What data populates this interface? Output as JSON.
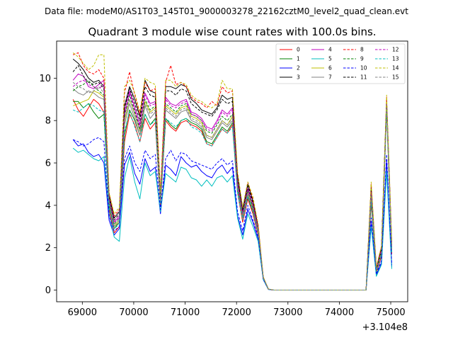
{
  "figure": {
    "suptitle": "Data file: modeM0/AS1T03_145T01_9000003278_22162cztM0_level2_quad_clean.evt",
    "title": "Quadrant 3 module wise count rates with 100.0s bins.",
    "offset_label": "+3.104e8"
  },
  "chart_data": {
    "type": "line",
    "title": "Quadrant 3 module wise count rates with 100.0s bins.",
    "xlabel": "",
    "ylabel": "",
    "x_offset": 310400000,
    "xlim": [
      68500,
      75330
    ],
    "ylim": [
      -0.55,
      11.75
    ],
    "xticks": [
      69000,
      70000,
      71000,
      72000,
      73000,
      74000,
      75000
    ],
    "xtick_labels": [
      "69000",
      "70000",
      "71000",
      "72000",
      "73000",
      "74000",
      "75000"
    ],
    "yticks": [
      0,
      2,
      4,
      6,
      8,
      10
    ],
    "ytick_labels": [
      "0",
      "2",
      "4",
      "6",
      "8",
      "10"
    ],
    "grid": false,
    "legend_position": "top-right",
    "x": [
      68820,
      68920,
      69020,
      69120,
      69220,
      69320,
      69420,
      69520,
      69620,
      69720,
      69820,
      69920,
      70020,
      70120,
      70220,
      70320,
      70420,
      70520,
      70620,
      70720,
      70820,
      70920,
      71020,
      71120,
      71220,
      71320,
      71420,
      71520,
      71620,
      71720,
      71820,
      71920,
      72020,
      72120,
      72220,
      72320,
      72420,
      72520,
      72620,
      72720,
      72820,
      72920,
      73020,
      73120,
      73220,
      73320,
      73420,
      73520,
      73620,
      73720,
      73820,
      73920,
      74020,
      74120,
      74220,
      74320,
      74420,
      74520,
      74620,
      74720,
      74820,
      74920,
      75020
    ],
    "series": [
      {
        "name": "0",
        "color": "#ff0000",
        "dash": false,
        "values": [
          9.0,
          8.5,
          8.2,
          8.6,
          9.0,
          8.8,
          8.4,
          3.8,
          2.7,
          3.0,
          7.0,
          8.3,
          7.8,
          7.0,
          8.1,
          7.6,
          7.9,
          4.0,
          8.0,
          7.7,
          7.5,
          7.9,
          8.0,
          7.8,
          7.7,
          7.5,
          6.9,
          6.8,
          7.2,
          7.6,
          7.4,
          7.8,
          4.6,
          3.2,
          4.3,
          3.6,
          2.6,
          0.55,
          0.04,
          0,
          0,
          0,
          0,
          0,
          0,
          0,
          0,
          0,
          0,
          0,
          0,
          0,
          0,
          0,
          0,
          0,
          0,
          0,
          4.1,
          0.8,
          1.6,
          8.5,
          1.7
        ]
      },
      {
        "name": "1",
        "color": "#008000",
        "dash": false,
        "values": [
          8.9,
          8.9,
          8.6,
          8.8,
          8.4,
          8.1,
          8.3,
          4.0,
          2.9,
          3.2,
          7.3,
          8.5,
          8.0,
          7.3,
          8.3,
          7.8,
          8.1,
          4.2,
          8.1,
          7.8,
          7.6,
          8.0,
          8.1,
          7.9,
          7.8,
          7.6,
          7.0,
          6.9,
          7.3,
          7.7,
          7.5,
          7.9,
          4.7,
          3.4,
          4.4,
          3.7,
          2.7,
          0.58,
          0.04,
          0,
          0,
          0,
          0,
          0,
          0,
          0,
          0,
          0,
          0,
          0,
          0,
          0,
          0,
          0,
          0,
          0,
          0,
          0,
          4.2,
          0.85,
          1.7,
          8.6,
          1.8
        ]
      },
      {
        "name": "2",
        "color": "#0000ff",
        "dash": false,
        "values": [
          7.1,
          6.8,
          6.9,
          6.5,
          6.3,
          6.4,
          6.0,
          3.3,
          2.6,
          2.9,
          5.9,
          6.5,
          5.5,
          5.0,
          6.2,
          5.6,
          5.8,
          3.6,
          5.9,
          5.7,
          5.4,
          6.3,
          6.0,
          5.8,
          5.9,
          5.6,
          5.4,
          5.3,
          5.7,
          5.9,
          5.5,
          5.8,
          3.5,
          2.6,
          3.8,
          3.2,
          2.4,
          0.5,
          0.03,
          0,
          0,
          0,
          0,
          0,
          0,
          0,
          0,
          0,
          0,
          0,
          0,
          0,
          0,
          0,
          0,
          0,
          0,
          0,
          3.2,
          0.7,
          1.3,
          6.1,
          1.1
        ]
      },
      {
        "name": "3",
        "color": "#000000",
        "dash": false,
        "values": [
          10.9,
          10.7,
          10.4,
          10.0,
          9.8,
          9.9,
          9.6,
          4.5,
          3.4,
          3.7,
          8.7,
          9.6,
          9.0,
          8.2,
          9.9,
          9.4,
          9.3,
          4.5,
          9.6,
          9.6,
          9.5,
          9.7,
          9.6,
          9.0,
          8.8,
          8.5,
          8.4,
          8.3,
          8.6,
          9.2,
          9.0,
          9.1,
          5.4,
          3.8,
          5.0,
          4.2,
          3.0,
          0.6,
          0.04,
          0,
          0,
          0,
          0,
          0,
          0,
          0,
          0,
          0,
          0,
          0,
          0,
          0,
          0,
          0,
          0,
          0,
          0,
          0,
          4.9,
          1.0,
          2.0,
          9.0,
          2.1
        ]
      },
      {
        "name": "4",
        "color": "#bf00bf",
        "dash": false,
        "values": [
          9.9,
          10.2,
          10.1,
          9.6,
          9.5,
          9.7,
          9.9,
          4.3,
          3.2,
          3.5,
          8.4,
          9.4,
          8.6,
          7.8,
          9.3,
          8.8,
          8.9,
          4.4,
          9.1,
          8.8,
          8.7,
          8.9,
          9.0,
          8.4,
          8.3,
          8.1,
          7.7,
          7.6,
          8.0,
          8.5,
          8.3,
          8.6,
          5.1,
          3.6,
          4.8,
          4.0,
          2.9,
          0.6,
          0.04,
          0,
          0,
          0,
          0,
          0,
          0,
          0,
          0,
          0,
          0,
          0,
          0,
          0,
          0,
          0,
          0,
          0,
          0,
          0,
          4.7,
          0.95,
          1.9,
          8.9,
          2.0
        ]
      },
      {
        "name": "5",
        "color": "#00bfbf",
        "dash": false,
        "values": [
          6.7,
          6.5,
          6.6,
          6.4,
          6.2,
          6.1,
          6.3,
          3.6,
          2.5,
          2.3,
          5.3,
          6.3,
          5.1,
          4.3,
          6.0,
          5.4,
          5.6,
          3.7,
          5.5,
          5.3,
          5.1,
          5.8,
          5.7,
          5.3,
          5.2,
          4.9,
          5.2,
          4.9,
          5.3,
          5.4,
          5.1,
          5.4,
          3.4,
          2.4,
          3.6,
          3.0,
          2.3,
          0.5,
          0.03,
          0,
          0,
          0,
          0,
          0,
          0,
          0,
          0,
          0,
          0,
          0,
          0,
          0,
          0,
          0,
          0,
          0,
          0,
          0,
          3.0,
          0.65,
          1.2,
          5.6,
          1.0
        ]
      },
      {
        "name": "6",
        "color": "#bfbf00",
        "dash": false,
        "values": [
          8.7,
          8.8,
          8.9,
          9.0,
          9.4,
          9.3,
          9.1,
          4.2,
          3.0,
          3.3,
          8.0,
          9.0,
          8.3,
          7.5,
          8.9,
          8.4,
          8.6,
          4.3,
          8.7,
          8.5,
          8.3,
          8.6,
          8.7,
          8.2,
          8.1,
          7.9,
          7.3,
          7.2,
          7.6,
          8.0,
          7.8,
          8.2,
          4.9,
          3.5,
          4.6,
          3.9,
          2.8,
          0.58,
          0.04,
          0,
          0,
          0,
          0,
          0,
          0,
          0,
          0,
          0,
          0,
          0,
          0,
          0,
          0,
          0,
          0,
          0,
          0,
          0,
          4.5,
          0.9,
          1.8,
          8.8,
          1.9
        ]
      },
      {
        "name": "7",
        "color": "#808080",
        "dash": false,
        "values": [
          9.5,
          9.3,
          9.2,
          9.4,
          9.3,
          9.1,
          9.0,
          4.1,
          3.0,
          3.2,
          7.8,
          8.8,
          8.1,
          7.3,
          8.7,
          8.1,
          8.4,
          4.2,
          8.5,
          8.3,
          8.1,
          8.4,
          8.5,
          8.0,
          7.9,
          7.7,
          7.2,
          7.1,
          7.5,
          7.9,
          7.7,
          8.0,
          4.8,
          3.4,
          4.5,
          3.8,
          2.7,
          0.57,
          0.04,
          0,
          0,
          0,
          0,
          0,
          0,
          0,
          0,
          0,
          0,
          0,
          0,
          0,
          0,
          0,
          0,
          0,
          0,
          0,
          4.4,
          0.88,
          1.75,
          8.7,
          1.85
        ]
      },
      {
        "name": "8",
        "color": "#ff0000",
        "dash": true,
        "values": [
          11.1,
          11.2,
          10.6,
          10.3,
          10.2,
          10.4,
          10.0,
          4.6,
          3.5,
          3.8,
          9.3,
          10.3,
          9.2,
          8.3,
          9.8,
          9.4,
          9.5,
          4.6,
          9.8,
          10.6,
          9.7,
          9.8,
          9.6,
          9.1,
          8.9,
          8.8,
          8.6,
          8.9,
          8.7,
          9.6,
          9.3,
          9.4,
          5.5,
          3.9,
          5.1,
          4.3,
          3.1,
          0.62,
          0.05,
          0,
          0,
          0,
          0,
          0,
          0,
          0,
          0,
          0,
          0,
          0,
          0,
          0,
          0,
          0,
          0,
          0,
          0,
          0,
          5.0,
          1.05,
          2.05,
          9.1,
          2.2
        ]
      },
      {
        "name": "9",
        "color": "#008000",
        "dash": true,
        "values": [
          9.4,
          9.6,
          9.7,
          9.9,
          9.6,
          9.4,
          9.2,
          4.2,
          3.1,
          3.4,
          8.2,
          9.2,
          8.4,
          7.6,
          9.0,
          8.5,
          8.7,
          4.3,
          8.8,
          8.6,
          8.4,
          8.7,
          8.8,
          8.3,
          8.2,
          8.0,
          7.5,
          7.4,
          7.8,
          8.2,
          8.0,
          8.3,
          5.0,
          3.5,
          4.7,
          3.9,
          2.8,
          0.59,
          0.04,
          0,
          0,
          0,
          0,
          0,
          0,
          0,
          0,
          0,
          0,
          0,
          0,
          0,
          0,
          0,
          0,
          0,
          0,
          0,
          4.6,
          0.92,
          1.85,
          8.8,
          1.95
        ]
      },
      {
        "name": "10",
        "color": "#0000ff",
        "dash": true,
        "values": [
          7.1,
          7.0,
          6.8,
          6.9,
          7.1,
          7.2,
          7.0,
          3.5,
          2.8,
          3.0,
          6.2,
          6.8,
          6.0,
          5.6,
          6.6,
          6.2,
          6.4,
          3.8,
          6.2,
          6.6,
          6.1,
          6.5,
          6.4,
          6.1,
          6.0,
          5.9,
          5.8,
          5.7,
          6.0,
          6.2,
          5.9,
          6.1,
          3.7,
          2.8,
          4.0,
          3.3,
          2.5,
          0.52,
          0.03,
          0,
          0,
          0,
          0,
          0,
          0,
          0,
          0,
          0,
          0,
          0,
          0,
          0,
          0,
          0,
          0,
          0,
          0,
          0,
          3.4,
          0.75,
          1.4,
          6.4,
          1.2
        ]
      },
      {
        "name": "11",
        "color": "#000000",
        "dash": true,
        "values": [
          10.3,
          10.6,
          10.1,
          9.8,
          9.7,
          9.8,
          9.5,
          4.4,
          3.3,
          3.6,
          8.6,
          9.5,
          8.8,
          8.0,
          9.6,
          9.2,
          9.1,
          4.4,
          9.4,
          9.4,
          9.2,
          9.5,
          9.4,
          8.8,
          8.6,
          8.4,
          8.3,
          8.2,
          8.5,
          9.0,
          8.8,
          8.9,
          5.3,
          3.7,
          4.9,
          4.1,
          2.9,
          0.6,
          0.04,
          0,
          0,
          0,
          0,
          0,
          0,
          0,
          0,
          0,
          0,
          0,
          0,
          0,
          0,
          0,
          0,
          0,
          0,
          0,
          4.8,
          0.98,
          1.95,
          8.9,
          2.05
        ]
      },
      {
        "name": "12",
        "color": "#bf00bf",
        "dash": true,
        "values": [
          9.6,
          9.8,
          9.9,
          9.7,
          9.6,
          9.5,
          9.7,
          4.3,
          3.2,
          3.4,
          8.3,
          9.3,
          8.5,
          7.7,
          9.2,
          8.7,
          8.8,
          4.4,
          9.0,
          8.7,
          8.6,
          8.8,
          8.9,
          8.3,
          8.2,
          8.0,
          7.6,
          7.5,
          7.9,
          8.4,
          8.2,
          8.5,
          5.0,
          3.6,
          4.7,
          4.0,
          2.9,
          0.6,
          0.04,
          0,
          0,
          0,
          0,
          0,
          0,
          0,
          0,
          0,
          0,
          0,
          0,
          0,
          0,
          0,
          0,
          0,
          0,
          0,
          4.6,
          0.93,
          1.88,
          8.85,
          1.98
        ]
      },
      {
        "name": "13",
        "color": "#00bfbf",
        "dash": true,
        "values": [
          8.5,
          8.4,
          8.6,
          8.8,
          8.7,
          8.5,
          8.4,
          3.9,
          2.9,
          3.1,
          7.5,
          8.4,
          7.7,
          7.0,
          8.3,
          7.8,
          8.0,
          4.1,
          8.1,
          7.9,
          7.7,
          8.0,
          8.1,
          7.7,
          7.6,
          7.4,
          6.9,
          6.8,
          7.2,
          7.6,
          7.4,
          7.7,
          4.6,
          3.3,
          4.4,
          3.7,
          2.7,
          0.56,
          0.04,
          0,
          0,
          0,
          0,
          0,
          0,
          0,
          0,
          0,
          0,
          0,
          0,
          0,
          0,
          0,
          0,
          0,
          0,
          0,
          4.3,
          0.86,
          1.7,
          8.6,
          1.8
        ]
      },
      {
        "name": "14",
        "color": "#bfbf00",
        "dash": true,
        "values": [
          11.2,
          11.0,
          10.7,
          10.4,
          10.6,
          11.1,
          11.1,
          4.6,
          3.6,
          3.9,
          9.6,
          9.9,
          9.3,
          8.4,
          10.0,
          9.8,
          9.7,
          4.6,
          9.9,
          9.9,
          9.6,
          9.8,
          9.7,
          9.2,
          9.0,
          8.9,
          8.7,
          8.6,
          8.8,
          9.9,
          9.5,
          9.5,
          5.6,
          3.9,
          5.1,
          4.4,
          3.1,
          0.63,
          0.05,
          0,
          0,
          0,
          0,
          0,
          0,
          0,
          0,
          0,
          0,
          0,
          0,
          0,
          0,
          0,
          0,
          0,
          0,
          0,
          5.1,
          1.1,
          2.1,
          9.2,
          2.2
        ]
      },
      {
        "name": "15",
        "color": "#808080",
        "dash": true,
        "values": [
          9.8,
          9.6,
          9.5,
          9.3,
          9.4,
          9.6,
          9.3,
          4.2,
          3.1,
          3.3,
          8.1,
          9.0,
          8.3,
          7.5,
          8.8,
          8.3,
          8.5,
          4.2,
          8.6,
          8.4,
          8.2,
          8.5,
          8.6,
          8.1,
          8.0,
          7.8,
          7.3,
          7.2,
          7.6,
          8.0,
          7.8,
          8.1,
          4.8,
          3.5,
          4.6,
          3.8,
          2.8,
          0.58,
          0.04,
          0,
          0,
          0,
          0,
          0,
          0,
          0,
          0,
          0,
          0,
          0,
          0,
          0,
          0,
          0,
          0,
          0,
          0,
          0,
          4.5,
          0.9,
          1.8,
          8.75,
          1.9
        ]
      }
    ]
  }
}
